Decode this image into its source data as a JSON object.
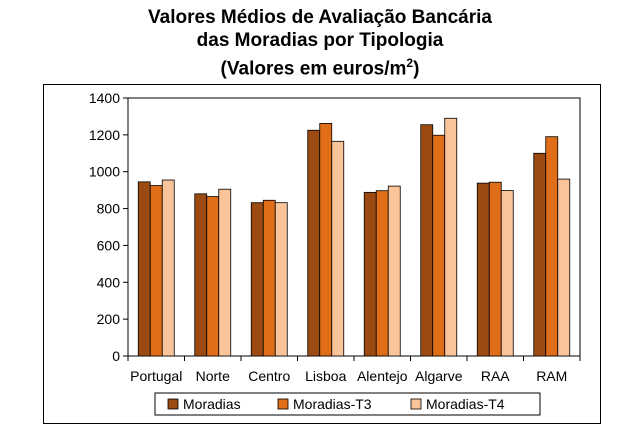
{
  "chart_data": {
    "type": "bar",
    "title_lines": [
      "Valores Médios de Avaliação Bancária",
      "das Moradias por Tipologia",
      "(Valores em euros/m",
      "2",
      ")"
    ],
    "categories": [
      "Portugal",
      "Norte",
      "Centro",
      "Lisboa",
      "Alentejo",
      "Algarve",
      "RAA",
      "RAM"
    ],
    "series": [
      {
        "name": "Moradias",
        "color": "#9b4a12",
        "values": [
          945,
          880,
          832,
          1225,
          888,
          1255,
          938,
          1100
        ]
      },
      {
        "name": "Moradias-T3",
        "color": "#e06e18",
        "values": [
          925,
          865,
          845,
          1262,
          897,
          1198,
          943,
          1190
        ]
      },
      {
        "name": "Moradias-T4",
        "color": "#f9c49a",
        "values": [
          955,
          905,
          832,
          1165,
          922,
          1290,
          898,
          960
        ]
      }
    ],
    "ylim": [
      0,
      1400
    ],
    "yticks": [
      0,
      200,
      400,
      600,
      800,
      1000,
      1200,
      1400
    ],
    "ytick_labels": [
      "0",
      "200",
      "400",
      "600",
      "800",
      "1000",
      "1200",
      "1400"
    ],
    "xlabel": "",
    "ylabel": "",
    "plot_background": "#ffffff",
    "legend_position": "bottom"
  }
}
